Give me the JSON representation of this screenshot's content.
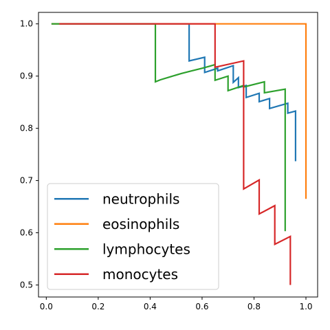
{
  "chart_data": {
    "type": "line",
    "title": "",
    "xlabel": "",
    "ylabel": "",
    "xlim": [
      -0.03,
      1.045
    ],
    "ylim": [
      0.477,
      1.022
    ],
    "xticks": [
      "0.0",
      "0.2",
      "0.4",
      "0.6",
      "0.8",
      "1.0"
    ],
    "yticks": [
      "0.5",
      "0.6",
      "0.7",
      "0.8",
      "0.9",
      "1.0"
    ],
    "grid": false,
    "legend_position": "lower-left",
    "series": [
      {
        "name": "neutrophils",
        "color": "#1f77b4",
        "points": [
          [
            0.02,
            1.0
          ],
          [
            0.55,
            1.0
          ],
          [
            0.55,
            0.929
          ],
          [
            0.61,
            0.936
          ],
          [
            0.61,
            0.907
          ],
          [
            0.66,
            0.915
          ],
          [
            0.66,
            0.91
          ],
          [
            0.72,
            0.92
          ],
          [
            0.72,
            0.888
          ],
          [
            0.74,
            0.897
          ],
          [
            0.74,
            0.878
          ],
          [
            0.77,
            0.882
          ],
          [
            0.77,
            0.859
          ],
          [
            0.82,
            0.867
          ],
          [
            0.82,
            0.851
          ],
          [
            0.86,
            0.857
          ],
          [
            0.86,
            0.838
          ],
          [
            0.93,
            0.848
          ],
          [
            0.93,
            0.829
          ],
          [
            0.96,
            0.833
          ],
          [
            0.96,
            0.737
          ]
        ]
      },
      {
        "name": "eosinophils",
        "color": "#ff7f0e",
        "points": [
          [
            0.02,
            1.0
          ],
          [
            1.0,
            1.0
          ],
          [
            1.0,
            0.665
          ]
        ]
      },
      {
        "name": "lymphocytes",
        "color": "#2ca02c",
        "points": [
          [
            0.02,
            1.0
          ],
          [
            0.42,
            1.0
          ],
          [
            0.42,
            0.889
          ],
          [
            0.44,
            0.893
          ],
          [
            0.48,
            0.899
          ],
          [
            0.52,
            0.905
          ],
          [
            0.56,
            0.91
          ],
          [
            0.6,
            0.915
          ],
          [
            0.63,
            0.919
          ],
          [
            0.65,
            0.922
          ],
          [
            0.65,
            0.892
          ],
          [
            0.7,
            0.9
          ],
          [
            0.7,
            0.872
          ],
          [
            0.76,
            0.882
          ],
          [
            0.76,
            0.879
          ],
          [
            0.84,
            0.889
          ],
          [
            0.84,
            0.868
          ],
          [
            0.92,
            0.875
          ],
          [
            0.92,
            0.603
          ]
        ]
      },
      {
        "name": "monocytes",
        "color": "#d62728",
        "points": [
          [
            0.05,
            1.0
          ],
          [
            0.65,
            1.0
          ],
          [
            0.65,
            0.917
          ],
          [
            0.76,
            0.929
          ],
          [
            0.76,
            0.684
          ],
          [
            0.82,
            0.701
          ],
          [
            0.82,
            0.636
          ],
          [
            0.88,
            0.652
          ],
          [
            0.88,
            0.578
          ],
          [
            0.94,
            0.593
          ],
          [
            0.94,
            0.5
          ]
        ]
      }
    ]
  }
}
